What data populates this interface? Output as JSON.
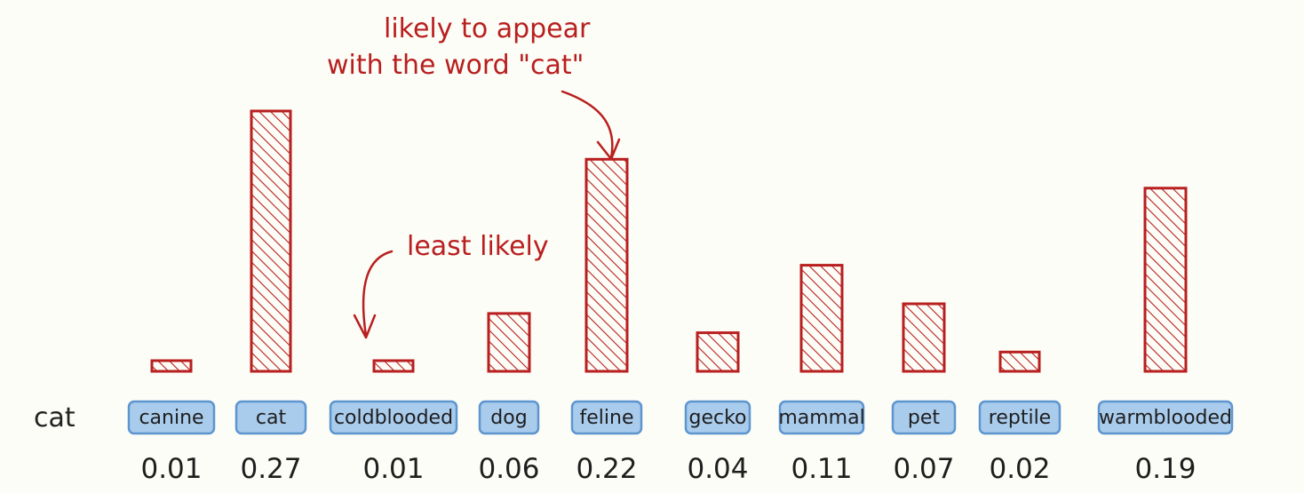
{
  "chart_data": {
    "type": "bar",
    "row_label": "cat",
    "categories": [
      "canine",
      "cat",
      "coldblooded",
      "dog",
      "feline",
      "gecko",
      "mammal",
      "pet",
      "reptile",
      "warmblooded"
    ],
    "values": [
      0.01,
      0.27,
      0.01,
      0.06,
      0.22,
      0.04,
      0.11,
      0.07,
      0.02,
      0.19
    ],
    "value_labels": [
      "0.01",
      "0.27",
      "0.01",
      "0.06",
      "0.22",
      "0.04",
      "0.11",
      "0.07",
      "0.02",
      "0.19"
    ],
    "ylim": [
      0,
      0.27
    ],
    "grid": false,
    "legend": "none",
    "colors": {
      "bar": "#b81f1f",
      "chip_fill": "#a9cbec",
      "chip_border": "#5d95cf",
      "annotation": "#b81f1f"
    },
    "annotations": [
      {
        "lines": [
          "likely to appear",
          "with the word \"cat\""
        ],
        "points_to": "feline"
      },
      {
        "lines": [
          "least likely"
        ],
        "points_to": "coldblooded"
      }
    ]
  }
}
